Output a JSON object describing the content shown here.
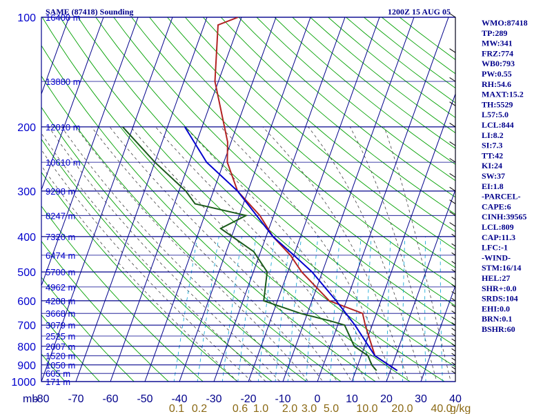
{
  "chart_data": {
    "type": "line",
    "title": "SAME (87418) Sounding",
    "valid_time": "1200Z 15 AUG 05",
    "pressure_levels": [
      "100",
      "200",
      "300",
      "400",
      "500",
      "600",
      "700",
      "800",
      "900",
      "1000"
    ],
    "pressure_unit": "mb",
    "height_labels": [
      {
        "p": 100,
        "label": "16400 m"
      },
      {
        "p": 150,
        "label": "13880 m"
      },
      {
        "p": 200,
        "label": "12010 m"
      },
      {
        "p": 250,
        "label": "10610 m"
      },
      {
        "p": 300,
        "label": "9298 m"
      },
      {
        "p": 350,
        "label": "8247 m"
      },
      {
        "p": 400,
        "label": "7320 m"
      },
      {
        "p": 450,
        "label": "6474 m"
      },
      {
        "p": 500,
        "label": "5700 m"
      },
      {
        "p": 550,
        "label": "4962 m"
      },
      {
        "p": 600,
        "label": "4288 m"
      },
      {
        "p": 650,
        "label": "3668 m"
      },
      {
        "p": 700,
        "label": "3079 m"
      },
      {
        "p": 750,
        "label": "2525 m"
      },
      {
        "p": 800,
        "label": "2007 m"
      },
      {
        "p": 850,
        "label": "1520 m"
      },
      {
        "p": 900,
        "label": "1050 m"
      },
      {
        "p": 950,
        "label": "605 m"
      },
      {
        "p": 1000,
        "label": "171 m"
      }
    ],
    "temperature_ticks": [
      "-80",
      "-70",
      "-60",
      "-50",
      "-40",
      "-30",
      "-20",
      "-10",
      "0",
      "10",
      "20",
      "30",
      "40"
    ],
    "mixing_ratio_ticks": [
      "0.1",
      "0.2",
      "0.6",
      "1.0",
      "2.0",
      "3.0",
      "5.0",
      "10.0",
      "20.0",
      "40.0"
    ],
    "mixing_ratio_unit": "g/kg",
    "xlim": [
      -80,
      40
    ],
    "ylim": [
      1000,
      100
    ],
    "y_scale": "log",
    "series": [
      {
        "key": "temperature",
        "color": "#b22222",
        "points": [
          [
            933,
            22
          ],
          [
            850,
            14
          ],
          [
            700,
            8
          ],
          [
            650,
            6
          ],
          [
            600,
            -5
          ],
          [
            500,
            -16
          ],
          [
            450,
            -21
          ],
          [
            400,
            -28
          ],
          [
            350,
            -34
          ],
          [
            300,
            -43
          ],
          [
            250,
            -49
          ],
          [
            220,
            -51
          ],
          [
            150,
            -61
          ],
          [
            105,
            -66
          ],
          [
            100,
            -61
          ]
        ]
      },
      {
        "key": "dewpoint",
        "color": "#1a5c1a",
        "points": [
          [
            933,
            16
          ],
          [
            900,
            14
          ],
          [
            850,
            12
          ],
          [
            800,
            7
          ],
          [
            700,
            2
          ],
          [
            680,
            -3
          ],
          [
            650,
            -12
          ],
          [
            600,
            -24
          ],
          [
            500,
            -26
          ],
          [
            440,
            -32
          ],
          [
            380,
            -44
          ],
          [
            350,
            -38
          ],
          [
            325,
            -54
          ],
          [
            300,
            -58
          ],
          [
            250,
            -70
          ],
          [
            200,
            -83
          ]
        ]
      },
      {
        "key": "parcel",
        "color": "#0000cd",
        "points": [
          [
            933,
            22
          ],
          [
            850,
            14
          ],
          [
            700,
            5
          ],
          [
            600,
            -3
          ],
          [
            500,
            -13
          ],
          [
            450,
            -20
          ],
          [
            400,
            -28
          ],
          [
            300,
            -43
          ],
          [
            250,
            -55
          ],
          [
            200,
            -65
          ]
        ]
      }
    ],
    "sounding_indices": [
      "WMO:87418",
      "TP:289",
      "MW:341",
      "FRZ:774",
      "WB0:793",
      "PW:0.55",
      "RH:54.6",
      "MAXT:15.2",
      "TH:5529",
      "L57:5.0",
      "LCL:844",
      "LI:8.2",
      "SI:7.3",
      "TT:42",
      "KI:24",
      "SW:37",
      "EI:1.8",
      "-PARCEL-",
      "CAPE:6",
      "CINH:39565",
      "LCL:809",
      "CAP:11.3",
      "LFC:-1",
      "-WIND-",
      "STM:16/14",
      "HEL:27",
      "SHR+:0.0",
      "SRDS:104",
      "EHI:0.0",
      "BRN:0.1",
      "BSHR:60"
    ],
    "colors": {
      "isobar": "#00008b",
      "isotherm": "#00008b",
      "dry_adiabat": "#00a000",
      "moist_adiabat": "#404040",
      "mixing_ratio": "#00a0d0",
      "temperature": "#b22222",
      "dewpoint": "#1a5c1a",
      "parcel": "#0000cd"
    }
  }
}
